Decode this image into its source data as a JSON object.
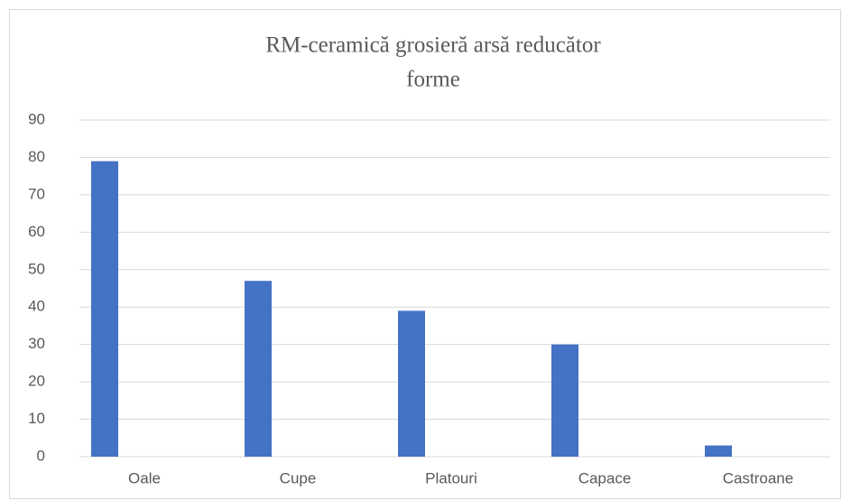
{
  "chart_data": {
    "type": "bar",
    "title": [
      "RM-ceramică grosieră arsă reducător",
      "forme"
    ],
    "categories": [
      "Oale",
      "Cupe",
      "Platouri",
      "Capace",
      "Castroane"
    ],
    "values": [
      79,
      47,
      39,
      30,
      3
    ],
    "color": "#4472c4",
    "ylim": [
      0,
      90
    ],
    "yticks": [
      0,
      10,
      20,
      30,
      40,
      50,
      60,
      70,
      80,
      90
    ],
    "grid": true
  }
}
